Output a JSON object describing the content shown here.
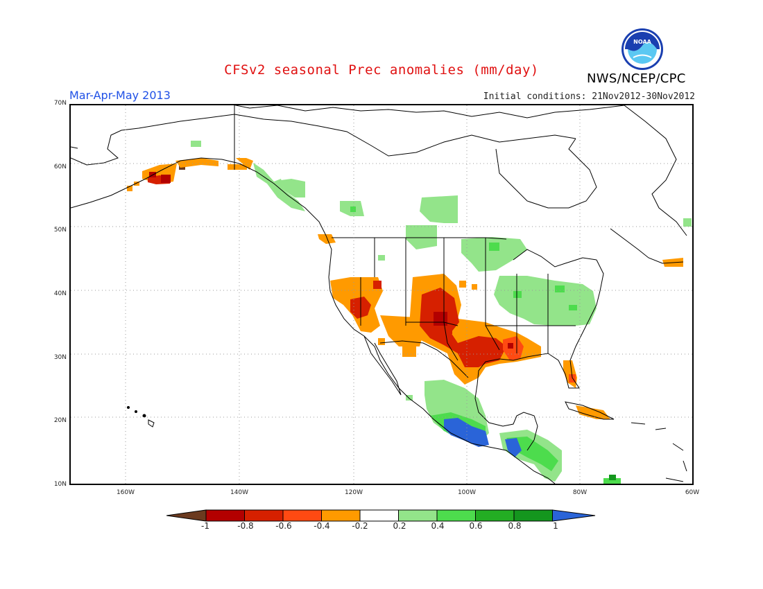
{
  "title": "CFSv2 seasonal Prec anomalies (mm/day)",
  "season": "Mar-Apr-May 2013",
  "initial_conditions": "Initial conditions: 21Nov2012-30Nov2012",
  "agency": "NWS/NCEP/CPC",
  "logo_text": "NOAA",
  "lat_labels": [
    "70N",
    "60N",
    "50N",
    "40N",
    "30N",
    "20N",
    "10N"
  ],
  "lon_labels": [
    "160W",
    "140W",
    "120W",
    "100W",
    "80W",
    "60W"
  ],
  "colorbar": {
    "labels": [
      "-1",
      "-0.8",
      "-0.6",
      "-0.4",
      "-0.2",
      "0.2",
      "0.4",
      "0.6",
      "0.8",
      "1"
    ],
    "colors": [
      "#6b3a1f",
      "#b30000",
      "#d62000",
      "#ff4a12",
      "#ff9a00",
      "#ffffff",
      "#93e48a",
      "#4ddc4d",
      "#23ad23",
      "#14961e",
      "#2a64d8"
    ]
  },
  "map": {
    "extent_lon": [
      -173,
      -60
    ],
    "extent_lat": [
      10,
      70
    ],
    "anomaly_palette": {
      "deep_red": "#b30000",
      "red": "#d62000",
      "orange_red": "#ff4a12",
      "orange": "#ff9a00",
      "light_green": "#93e48a",
      "green": "#4ddc4d",
      "dark_green": "#14961e",
      "blue": "#2a64d8",
      "brown": "#6b3a1f"
    }
  }
}
